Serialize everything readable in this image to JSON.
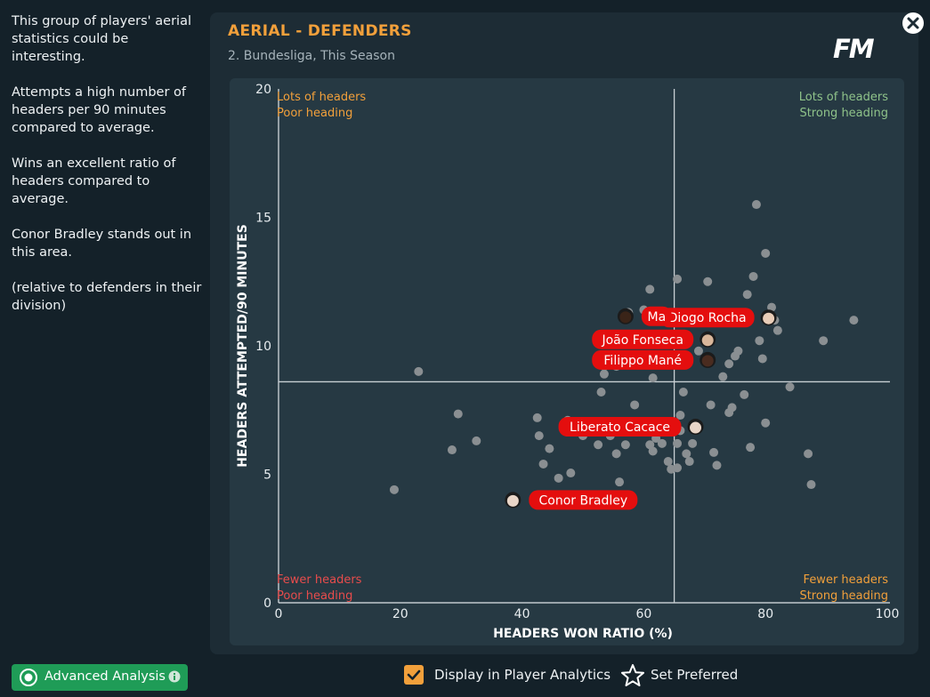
{
  "sidebar": {
    "paragraphs": [
      "This group of players' aerial statistics could be interesting.",
      "Attempts a high number of headers per 90 minutes compared to average.",
      "Wins an excellent ratio of headers compared to average.",
      "Conor Bradley stands out in this area.",
      "(relative to defenders in their division)"
    ]
  },
  "panel": {
    "title": "AERIAL - DEFENDERS",
    "subtitle": "2. Bundesliga, This Season",
    "logo": "FM"
  },
  "footer": {
    "advanced_label": "Advanced Analysis",
    "display_label": "Display in Player Analytics",
    "display_checked": true,
    "preferred_label": "Set Preferred"
  },
  "colors": {
    "accent": "#f2a03b",
    "green": "#8fc38a",
    "red": "#e84c4c",
    "dot": "#8a8f92",
    "label_bg": "#e40e0e"
  },
  "chart_data": {
    "type": "scatter",
    "xlabel": "HEADERS WON RATIO (%)",
    "ylabel": "HEADERS ATTEMPTED/90 MINUTES",
    "xlim": [
      0,
      100
    ],
    "ylim": [
      0,
      20
    ],
    "xticks": [
      "0",
      "20",
      "40",
      "60",
      "80",
      "100"
    ],
    "yticks": [
      "0",
      "5",
      "10",
      "15",
      "20"
    ],
    "average": {
      "x": 65,
      "y": 8.6
    },
    "quadrants": {
      "top_left": [
        "Lots of headers",
        "Poor heading"
      ],
      "top_right": [
        "Lots of headers",
        "Strong heading"
      ],
      "bottom_left": [
        "Fewer headers",
        "Poor heading"
      ],
      "bottom_right": [
        "Fewer headers",
        "Strong heading"
      ]
    },
    "points": [
      [
        19,
        4.4
      ],
      [
        23,
        9
      ],
      [
        28.5,
        5.95
      ],
      [
        29.5,
        7.35
      ],
      [
        32.5,
        6.3
      ],
      [
        42.5,
        7.2
      ],
      [
        42.8,
        6.5
      ],
      [
        43.5,
        5.4
      ],
      [
        44.5,
        6
      ],
      [
        46,
        4.85
      ],
      [
        47.5,
        7.1
      ],
      [
        48,
        5.05
      ],
      [
        50,
        6.5
      ],
      [
        52.5,
        6.15
      ],
      [
        53,
        8.2
      ],
      [
        53.5,
        9.2
      ],
      [
        53.5,
        8.9
      ],
      [
        54.5,
        6.5
      ],
      [
        55.5,
        5.8
      ],
      [
        55.5,
        9.2
      ],
      [
        56,
        4.7
      ],
      [
        56.5,
        9.5
      ],
      [
        57,
        6.15
      ],
      [
        57.5,
        11.3
      ],
      [
        58.5,
        7.7
      ],
      [
        58.5,
        9.3
      ],
      [
        60,
        11.4
      ],
      [
        61,
        12.2
      ],
      [
        61.5,
        8.75
      ],
      [
        61,
        6.15
      ],
      [
        61.5,
        5.9
      ],
      [
        62,
        6.4
      ],
      [
        63,
        6.2
      ],
      [
        64,
        5.5
      ],
      [
        64.5,
        5.2
      ],
      [
        65.5,
        5.25
      ],
      [
        65.5,
        6.2
      ],
      [
        66,
        6.7
      ],
      [
        66,
        7.3
      ],
      [
        66.5,
        8.2
      ],
      [
        65.5,
        12.6
      ],
      [
        67,
        5.8
      ],
      [
        67.5,
        5.5
      ],
      [
        68,
        6.2
      ],
      [
        68.5,
        6.8
      ],
      [
        69,
        9.8
      ],
      [
        70,
        9.5
      ],
      [
        71,
        7.7
      ],
      [
        70.5,
        12.5
      ],
      [
        71.5,
        5.85
      ],
      [
        72,
        5.35
      ],
      [
        72.5,
        11.2
      ],
      [
        73,
        8.8
      ],
      [
        74,
        9.3
      ],
      [
        74,
        7.4
      ],
      [
        74.5,
        7.6
      ],
      [
        75,
        9.6
      ],
      [
        75.5,
        9.8
      ],
      [
        76,
        11.2
      ],
      [
        76.5,
        8.1
      ],
      [
        77,
        12
      ],
      [
        77.5,
        6.05
      ],
      [
        78,
        12.7
      ],
      [
        78.5,
        15.5
      ],
      [
        79,
        10.2
      ],
      [
        79.5,
        9.5
      ],
      [
        80,
        13.6
      ],
      [
        80,
        7
      ],
      [
        81,
        11.5
      ],
      [
        81.5,
        11
      ],
      [
        82,
        10.6
      ],
      [
        84,
        8.4
      ],
      [
        87,
        5.8
      ],
      [
        87.5,
        4.6
      ],
      [
        89.5,
        10.2
      ],
      [
        94.5,
        11
      ]
    ],
    "players": [
      {
        "name": "Conor Bradley",
        "x": 38.5,
        "y": 4,
        "label_side": "right"
      },
      {
        "name": "Liberato Cacace",
        "x": 68.5,
        "y": 6.85,
        "label_side": "left"
      },
      {
        "name": "Filippo Mané",
        "x": 70.5,
        "y": 9.45,
        "label_side": "left"
      },
      {
        "name": "João Fonseca",
        "x": 70.5,
        "y": 10.25,
        "label_side": "left"
      },
      {
        "name": "Diogo Rocha",
        "x": 80.5,
        "y": 11.1,
        "label_side": "left"
      },
      {
        "name": "Ma",
        "x": 57,
        "y": 11.15,
        "label_side": "right"
      }
    ]
  }
}
